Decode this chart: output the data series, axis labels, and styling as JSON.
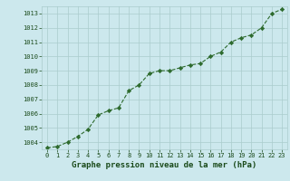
{
  "x": [
    0,
    1,
    2,
    3,
    4,
    5,
    6,
    7,
    8,
    9,
    10,
    11,
    12,
    13,
    14,
    15,
    16,
    17,
    18,
    19,
    20,
    21,
    22,
    23
  ],
  "y": [
    1003.6,
    1003.7,
    1004.0,
    1004.4,
    1004.9,
    1005.9,
    1006.2,
    1006.4,
    1007.6,
    1008.0,
    1008.8,
    1009.0,
    1009.0,
    1009.2,
    1009.4,
    1009.5,
    1010.0,
    1010.3,
    1011.0,
    1011.3,
    1011.5,
    1012.0,
    1013.0,
    1013.3
  ],
  "ylim": [
    1003.5,
    1013.5
  ],
  "yticks": [
    1004,
    1005,
    1006,
    1007,
    1008,
    1009,
    1010,
    1011,
    1012,
    1013
  ],
  "xlim": [
    -0.5,
    23.5
  ],
  "xticks": [
    0,
    1,
    2,
    3,
    4,
    5,
    6,
    7,
    8,
    9,
    10,
    11,
    12,
    13,
    14,
    15,
    16,
    17,
    18,
    19,
    20,
    21,
    22,
    23
  ],
  "xlabel": "Graphe pression niveau de la mer (hPa)",
  "line_color": "#2d6a2d",
  "marker": "D",
  "marker_size": 2.2,
  "bg_color": "#cce8ed",
  "grid_color": "#aacccc",
  "tick_label_color": "#1a4a1a",
  "xlabel_color": "#1a4a1a",
  "tick_fontsize": 5.0,
  "xlabel_fontsize": 6.5
}
